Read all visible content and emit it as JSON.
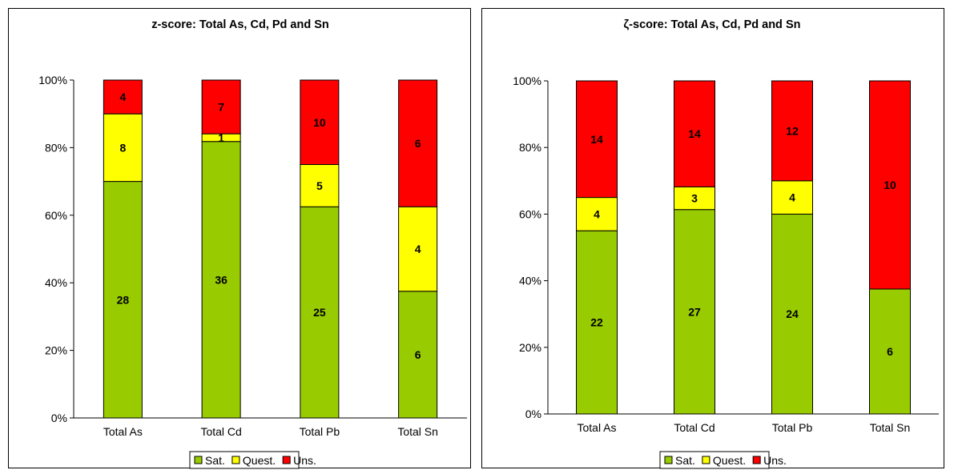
{
  "chart_data": [
    {
      "type": "bar",
      "stacked": "percent",
      "title": "z-score: Total As, Cd, Pd and Sn",
      "categories": [
        "Total As",
        "Total Cd",
        "Total Pb",
        "Total Sn"
      ],
      "series": [
        {
          "name": "Sat.",
          "color": "#99CC00",
          "values": [
            28,
            36,
            25,
            6
          ]
        },
        {
          "name": "Quest.",
          "color": "#FFFF00",
          "values": [
            8,
            1,
            5,
            4
          ]
        },
        {
          "name": "Uns.",
          "color": "#FF0000",
          "values": [
            4,
            7,
            10,
            6
          ]
        }
      ],
      "yticks": [
        "0%",
        "20%",
        "40%",
        "60%",
        "80%",
        "100%"
      ],
      "ylim": [
        0,
        100
      ],
      "legend": "bottom",
      "grid": false
    },
    {
      "type": "bar",
      "stacked": "percent",
      "title": "ζ-score: Total As, Cd, Pd and Sn",
      "categories": [
        "Total As",
        "Total Cd",
        "Total Pb",
        "Total Sn"
      ],
      "series": [
        {
          "name": "Sat.",
          "color": "#99CC00",
          "values": [
            22,
            27,
            24,
            6
          ]
        },
        {
          "name": "Quest.",
          "color": "#FFFF00",
          "values": [
            4,
            3,
            4,
            0
          ]
        },
        {
          "name": "Uns.",
          "color": "#FF0000",
          "values": [
            14,
            14,
            12,
            10
          ]
        }
      ],
      "yticks": [
        "0%",
        "20%",
        "40%",
        "60%",
        "80%",
        "100%"
      ],
      "ylim": [
        0,
        100
      ],
      "legend": "bottom",
      "grid": false
    }
  ]
}
